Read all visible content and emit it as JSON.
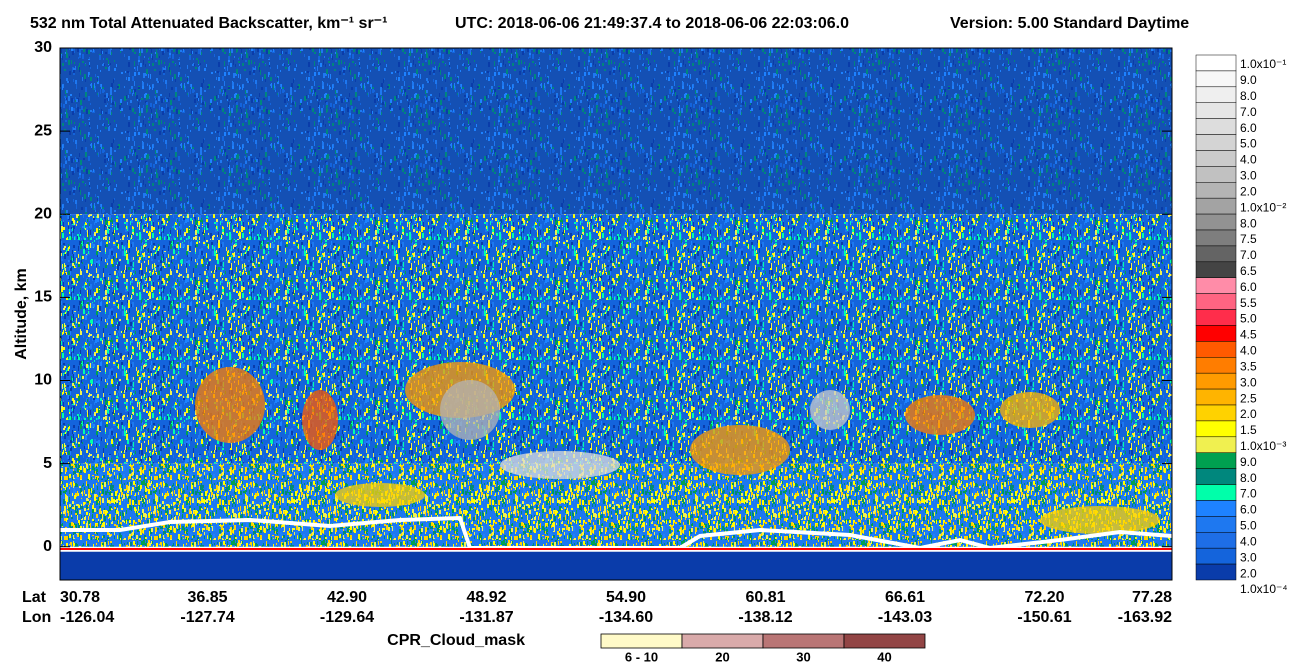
{
  "chart_data": {
    "type": "heatmap",
    "title": "532 nm Total Attenuated Backscatter, km⁻¹ sr⁻¹",
    "time_range": "UTC:  2018-06-06 21:49:37.4  to  2018-06-06 22:03:06.0",
    "version": "Version: 5.00  Standard  Daytime",
    "ylabel": "Altitude, km",
    "ylim": [
      -2,
      30
    ],
    "yticks": [
      0,
      5,
      10,
      15,
      20,
      25,
      30
    ],
    "x_row_names": [
      "Lat",
      "Lon"
    ],
    "lat": [
      "30.78",
      "36.85",
      "42.90",
      "48.92",
      "54.90",
      "60.81",
      "66.61",
      "72.20",
      "77.28"
    ],
    "lon": [
      "-126.04",
      "-127.74",
      "-129.64",
      "-131.87",
      "-134.60",
      "-138.12",
      "-143.03",
      "-150.61",
      "-163.92"
    ],
    "colorbar": {
      "labels": [
        "1.0x10⁻¹",
        "9.0",
        "8.0",
        "7.0",
        "6.0",
        "5.0",
        "4.0",
        "3.0",
        "2.0",
        "1.0x10⁻²",
        "8.0",
        "7.5",
        "7.0",
        "6.5",
        "6.0",
        "5.5",
        "5.0",
        "4.5",
        "4.0",
        "3.5",
        "3.0",
        "2.5",
        "2.0",
        "1.5",
        "1.0x10⁻³",
        "9.0",
        "8.0",
        "7.0",
        "6.0",
        "5.0",
        "4.0",
        "3.0",
        "2.0",
        "1.0x10⁻⁴"
      ],
      "colors": [
        "#ffffff",
        "#f7f7f7",
        "#efefef",
        "#e6e6e6",
        "#dddddd",
        "#d4d4d4",
        "#cbcbcb",
        "#c1c1c1",
        "#b4b4b4",
        "#a3a3a3",
        "#929292",
        "#7e7e7e",
        "#646464",
        "#444444",
        "#ff8ca8",
        "#ff6482",
        "#ff2d4b",
        "#ff0000",
        "#ff5a00",
        "#ff7d00",
        "#ff9b00",
        "#ffb400",
        "#ffd200",
        "#ffff00",
        "#f0f050",
        "#00a050",
        "#00877d",
        "#00ffaa",
        "#1e82ff",
        "#1e78f0",
        "#1e6ee6",
        "#1464dc",
        "#0a3caa",
        "#003296"
      ]
    },
    "cloud_mask": {
      "title": "CPR_Cloud_mask",
      "labels": [
        "6 - 10",
        "20",
        "30",
        "40"
      ],
      "colors": [
        "#fffac8",
        "#d9aaaa",
        "#b97575",
        "#924545"
      ]
    }
  }
}
